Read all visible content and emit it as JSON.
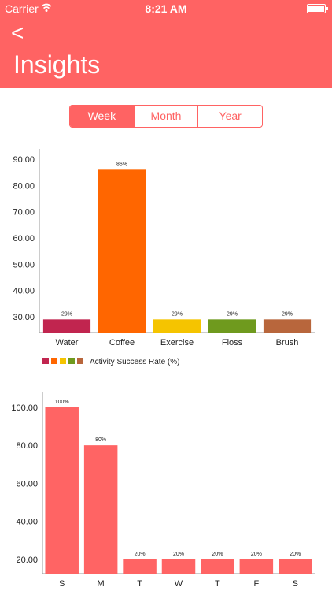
{
  "status_bar": {
    "carrier": "Carrier",
    "time": "8:21 AM"
  },
  "header": {
    "back": "<",
    "title": "Insights"
  },
  "segments": [
    "Week",
    "Month",
    "Year"
  ],
  "selected_segment": "Week",
  "colors": {
    "accent": "#ff6363"
  },
  "chart_data": [
    {
      "type": "bar",
      "categories": [
        "Water",
        "Coffee",
        "Exercise",
        "Floss",
        "Brush"
      ],
      "values": [
        29,
        86,
        29,
        29,
        29
      ],
      "data_labels": [
        "29%",
        "86%",
        "29%",
        "29%",
        "29%"
      ],
      "colors": [
        "#c1254f",
        "#ff6600",
        "#f5c400",
        "#6f9a1e",
        "#b8663c"
      ],
      "y_ticks": [
        "30.00",
        "40.00",
        "50.00",
        "60.00",
        "70.00",
        "80.00",
        "90.00"
      ],
      "ylim": [
        24,
        93
      ],
      "legend": "Activity Success Rate (%)",
      "legend_position": "bottom-left"
    },
    {
      "type": "bar",
      "categories": [
        "S",
        "M",
        "T",
        "W",
        "T",
        "F",
        "S"
      ],
      "values": [
        100,
        80,
        20,
        20,
        20,
        20,
        20
      ],
      "data_labels": [
        "100%",
        "80%",
        "20%",
        "20%",
        "20%",
        "20%",
        "20%"
      ],
      "color": "#ff6464",
      "y_ticks": [
        "20.00",
        "40.00",
        "60.00",
        "80.00",
        "100.00"
      ],
      "ylim": [
        12.5,
        107
      ]
    }
  ]
}
